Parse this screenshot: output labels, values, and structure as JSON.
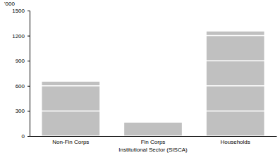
{
  "chart_data": {
    "type": "bar",
    "y_label": "'000",
    "x_label": "Institutional Sector (SISCA)",
    "categories": [
      "Non-Fin Corps",
      "Fin Corps",
      "Households"
    ],
    "values": [
      650,
      160,
      1250
    ],
    "color": "#c0c0c0",
    "ylim": [
      0,
      1500
    ],
    "yticks": [
      0,
      300,
      600,
      900,
      1200,
      1500
    ],
    "grid": true
  }
}
